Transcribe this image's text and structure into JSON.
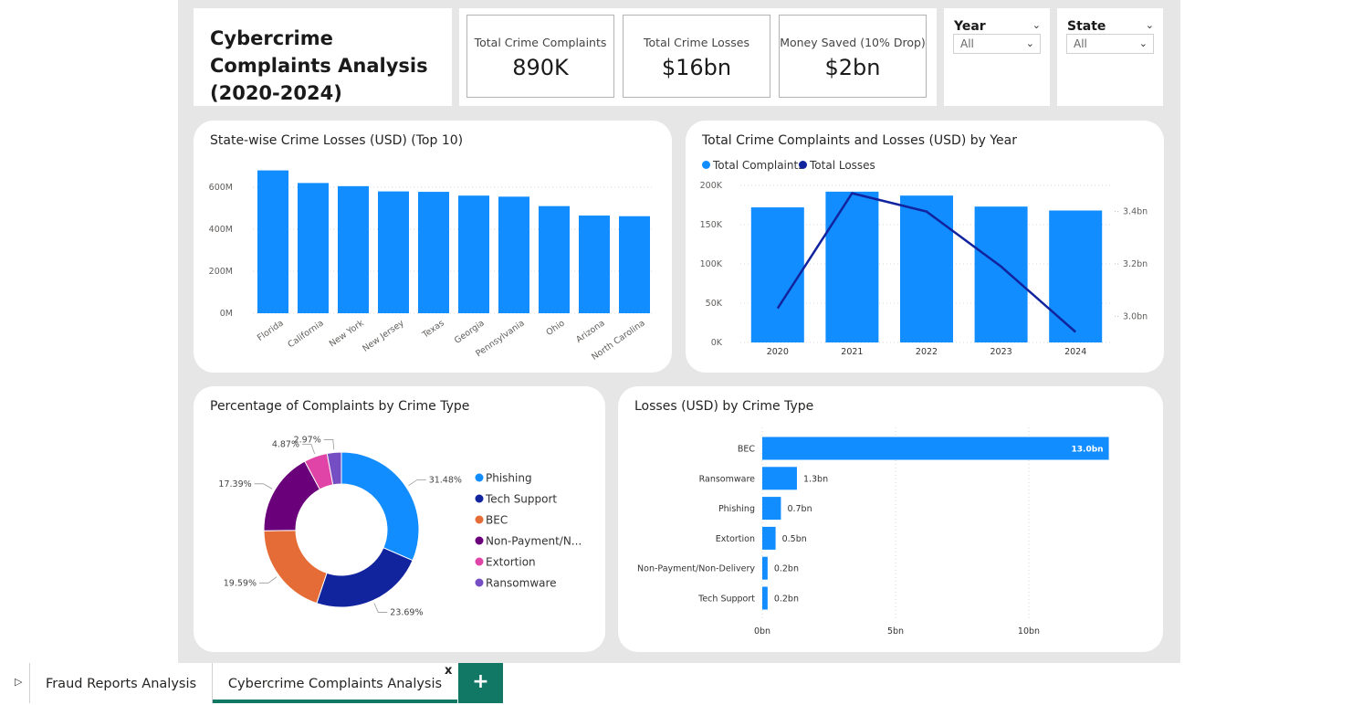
{
  "title": "Cybercrime Complaints Analysis (2020-2024)",
  "kpis": [
    {
      "label": "Total Crime Complaints",
      "value": "890K"
    },
    {
      "label": "Total Crime Losses",
      "value": "$16bn"
    },
    {
      "label": "Money Saved (10% Drop)",
      "value": "$2bn"
    }
  ],
  "slicers": {
    "year": {
      "label": "Year",
      "value": "All"
    },
    "state": {
      "label": "State",
      "value": "All"
    }
  },
  "colors": {
    "primary": "#118dff",
    "dark": "#12239e",
    "orange": "#e66c37",
    "purple": "#6b007b",
    "pink": "#e044a7",
    "violet": "#744ec2"
  },
  "chart_data": [
    {
      "type": "bar",
      "title": "State-wise Crime Losses (USD) (Top 10)",
      "categories": [
        "Florida",
        "California",
        "New York",
        "New Jersey",
        "Texas",
        "Georgia",
        "Pennsylvania",
        "Ohio",
        "Arizona",
        "North Carolina"
      ],
      "values": [
        680,
        620,
        605,
        580,
        578,
        560,
        555,
        510,
        465,
        462
      ],
      "yticks": [
        "0M",
        "200M",
        "400M",
        "600M"
      ],
      "ylim": [
        0,
        700
      ],
      "grid": true
    },
    {
      "type": "bar+line",
      "title": "Total Crime Complaints and Losses (USD) by Year",
      "legend": [
        "Total Complaints",
        "Total Losses"
      ],
      "legend_position": "top-left",
      "categories": [
        "2020",
        "2021",
        "2022",
        "2023",
        "2024"
      ],
      "series": [
        {
          "name": "Total Complaints",
          "type": "bar",
          "values": [
            172000,
            192000,
            187000,
            173000,
            168000
          ]
        },
        {
          "name": "Total Losses",
          "type": "line",
          "axis": "right",
          "values": [
            3.03,
            3.47,
            3.4,
            3.19,
            2.94
          ]
        }
      ],
      "yticks_left": [
        "0K",
        "50K",
        "100K",
        "150K",
        "200K"
      ],
      "ylim_left": [
        0,
        200000
      ],
      "yticks_right": [
        "3.0bn",
        "3.2bn",
        "3.4bn"
      ],
      "right_tick_values": [
        3.0,
        3.2,
        3.4
      ],
      "ylim_right": [
        2.9,
        3.5
      ]
    },
    {
      "type": "pie",
      "title": "Percentage of Complaints by Crime Type",
      "labels": [
        "Phishing",
        "Tech Support",
        "BEC",
        "Non-Payment/N...",
        "Extortion",
        "Ransomware"
      ],
      "values": [
        31.48,
        23.69,
        19.59,
        17.39,
        4.87,
        2.97
      ],
      "value_labels": [
        "31.48%",
        "23.69%",
        "19.59%",
        "17.39%",
        "4.87%",
        "2.97%"
      ],
      "legend_position": "right"
    },
    {
      "type": "bar",
      "orientation": "horizontal",
      "title": "Losses (USD) by Crime Type",
      "categories": [
        "BEC",
        "Ransomware",
        "Phishing",
        "Extortion",
        "Non-Payment/Non-Delivery",
        "Tech Support"
      ],
      "values": [
        13.0,
        1.3,
        0.7,
        0.5,
        0.2,
        0.2
      ],
      "value_labels": [
        "13.0bn",
        "1.3bn",
        "0.7bn",
        "0.5bn",
        "0.2bn",
        "0.2bn"
      ],
      "xticks": [
        "0bn",
        "5bn",
        "10bn"
      ],
      "xlim": [
        0,
        15
      ]
    }
  ],
  "tabs": [
    {
      "label": "Fraud Reports Analysis",
      "active": false
    },
    {
      "label": "Cybercrime Complaints Analysis",
      "active": true
    }
  ],
  "close_label": "x",
  "add_label": "+"
}
